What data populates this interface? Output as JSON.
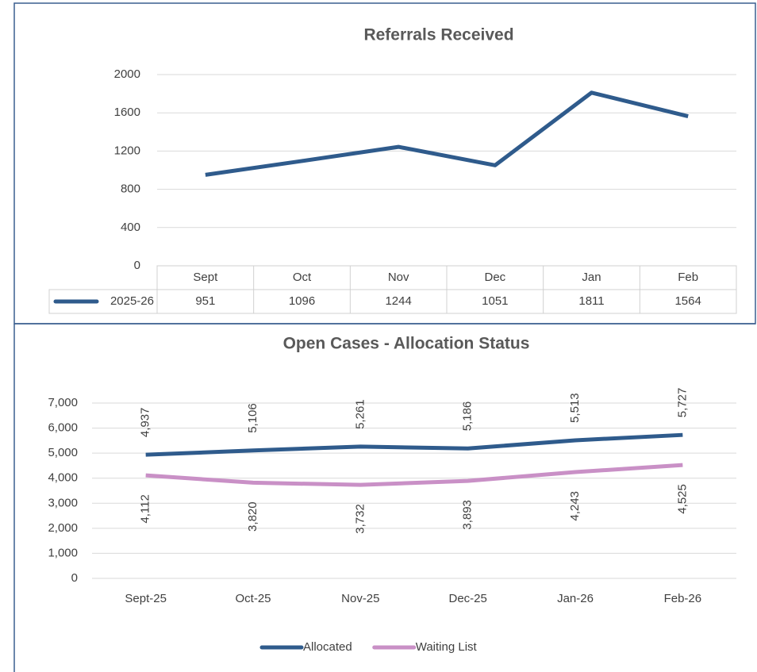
{
  "chart_data": [
    {
      "type": "line",
      "title": "Referrals Received",
      "categories": [
        "Sept",
        "Oct",
        "Nov",
        "Dec",
        "Jan",
        "Feb"
      ],
      "series": [
        {
          "name": "2025-26",
          "color": "#2f5b8c",
          "values": [
            951,
            1096,
            1244,
            1051,
            1811,
            1564
          ]
        }
      ],
      "ylim": [
        0,
        2000
      ],
      "yticks": [
        0,
        400,
        800,
        1200,
        1600,
        2000
      ],
      "grid": true,
      "data_table": true
    },
    {
      "type": "line",
      "title": "Open Cases - Allocation Status",
      "categories": [
        "Sept-25",
        "Oct-25",
        "Nov-25",
        "Dec-25",
        "Jan-26",
        "Feb-26"
      ],
      "series": [
        {
          "name": "Allocated",
          "color": "#2f5b8c",
          "values": [
            4937,
            5106,
            5261,
            5186,
            5513,
            5727
          ],
          "value_labels": [
            "4,937",
            "5,106",
            "5,261",
            "5,186",
            "5,513",
            "5,727"
          ]
        },
        {
          "name": "Waiting List",
          "color": "#c990c6",
          "values": [
            4112,
            3820,
            3732,
            3893,
            4243,
            4525
          ],
          "value_labels": [
            "4,112",
            "3,820",
            "3,732",
            "3,893",
            "4,243",
            "4,525"
          ]
        }
      ],
      "ylim": [
        0,
        7000
      ],
      "yticks": [
        0,
        {
          "value": 1000,
          "label": "1,000"
        },
        {
          "value": 2000,
          "label": "2,000"
        },
        {
          "value": 3000,
          "label": "3,000"
        },
        {
          "value": 4000,
          "label": "4,000"
        },
        {
          "value": 5000,
          "label": "5,000"
        },
        {
          "value": 6000,
          "label": "6,000"
        },
        {
          "value": 7000,
          "label": "7,000"
        }
      ],
      "grid": true,
      "legend": "bottom"
    }
  ]
}
